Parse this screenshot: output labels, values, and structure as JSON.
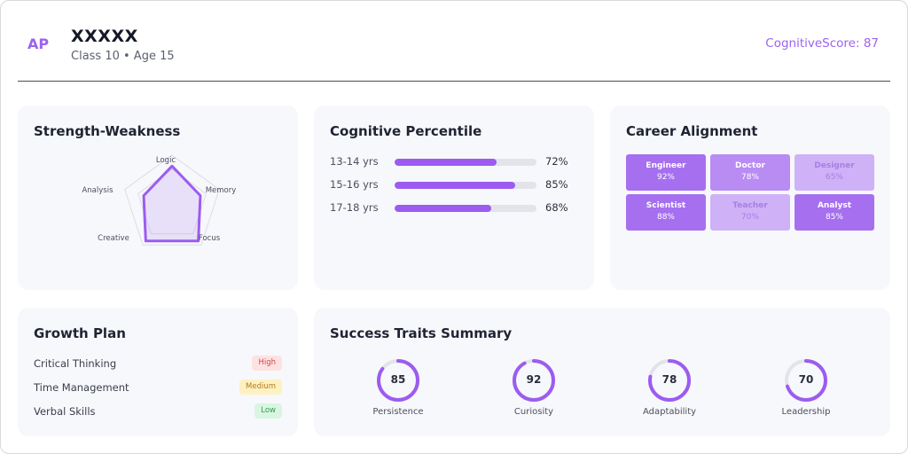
{
  "header": {
    "avatar_initials": "AP",
    "student_name": "XXXXX",
    "student_sub": "Class 10 • Age 15",
    "cognitive_score": "CognitiveScore: 87"
  },
  "strength": {
    "title": "Strength-Weakness",
    "axes": [
      "Logic",
      "Memory",
      "Focus",
      "Creative",
      "Analysis"
    ],
    "values": [
      0.78,
      0.6,
      0.9,
      0.9,
      0.6
    ]
  },
  "percentile": {
    "title": "Cognitive Percentile",
    "rows": [
      {
        "label": "13-14 yrs",
        "value": 72,
        "text": "72%"
      },
      {
        "label": "15-16 yrs",
        "value": 85,
        "text": "85%"
      },
      {
        "label": "17-18 yrs",
        "value": 68,
        "text": "68%"
      }
    ]
  },
  "career": {
    "title": "Career Alignment",
    "tiles": [
      {
        "name": "Engineer",
        "pct": "92%",
        "value": 92
      },
      {
        "name": "Doctor",
        "pct": "78%",
        "value": 78
      },
      {
        "name": "Designer",
        "pct": "65%",
        "value": 65
      },
      {
        "name": "Scientist",
        "pct": "88%",
        "value": 88
      },
      {
        "name": "Teacher",
        "pct": "70%",
        "value": 70
      },
      {
        "name": "Analyst",
        "pct": "85%",
        "value": 85
      }
    ]
  },
  "growth": {
    "title": "Growth Plan",
    "items": [
      {
        "label": "Critical Thinking",
        "priority": "High",
        "bg": "#fde2e2",
        "fg": "#d64545"
      },
      {
        "label": "Time Management",
        "priority": "Medium",
        "bg": "#fdf1c2",
        "fg": "#b7791f"
      },
      {
        "label": "Verbal Skills",
        "priority": "Low",
        "bg": "#daf5e1",
        "fg": "#2f9e55"
      }
    ]
  },
  "traits": {
    "title": "Success Traits Summary",
    "items": [
      {
        "label": "Persistence",
        "value": 85,
        "text": "85"
      },
      {
        "label": "Curiosity",
        "value": 92,
        "text": "92"
      },
      {
        "label": "Adaptability",
        "value": 78,
        "text": "78"
      },
      {
        "label": "Leadership",
        "value": 70,
        "text": "70"
      }
    ]
  },
  "colors": {
    "accent": "#9c63f0",
    "bar_fill": "#9c5cf0",
    "track": "#e3e4ea"
  }
}
